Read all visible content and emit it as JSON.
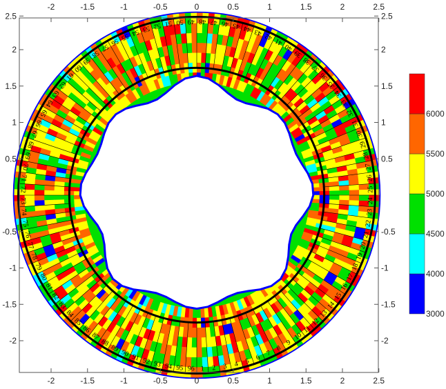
{
  "chart_data": {
    "type": "heatmap",
    "subtype": "filled-contour-polar-ring",
    "title": "",
    "xlabel": "",
    "ylabel": "",
    "xlim": [
      -2.5,
      2.5
    ],
    "ylim": [
      -2.5,
      2.5
    ],
    "x_ticks": [
      "-2",
      "-1.5",
      "-1",
      "-0.5",
      "0",
      "0.5",
      "1",
      "1.5",
      "2",
      "2.5"
    ],
    "y_ticks": [
      "2.5",
      "2",
      "1.5",
      "1",
      "0.5",
      "-0.5",
      "-1",
      "-1.5",
      "-2"
    ],
    "ring": {
      "inner_radius": 1.75,
      "outer_radius": 2.45,
      "sections": 96,
      "direction": "counterclockwise from bottom"
    },
    "section_labels": [
      "1",
      "2",
      "3",
      "4",
      "5",
      "6",
      "7",
      "8",
      "9",
      "10",
      "11",
      "12",
      "13",
      "14",
      "15",
      "16",
      "17",
      "18",
      "19",
      "20",
      "21",
      "22",
      "23",
      "24",
      "25",
      "26",
      "27",
      "28",
      "29",
      "30",
      "31",
      "32",
      "33",
      "34",
      "35",
      "36",
      "37",
      "38",
      "39",
      "40",
      "41",
      "42",
      "43",
      "44",
      "45",
      "46",
      "47",
      "48",
      "49",
      "50",
      "51",
      "52",
      "53",
      "54",
      "55",
      "56",
      "57",
      "58",
      "59",
      "60",
      "61",
      "62",
      "63",
      "64",
      "65",
      "66",
      "67",
      "68",
      "69",
      "70",
      "71",
      "72",
      "73",
      "74",
      "75",
      "76",
      "77",
      "78",
      "79",
      "80",
      "81",
      "82",
      "83",
      "84",
      "85",
      "86",
      "87",
      "88",
      "89",
      "90",
      "91",
      "92",
      "93",
      "94",
      "95",
      "96"
    ],
    "colorbar": {
      "levels": [
        "3000",
        "4000",
        "4500",
        "5000",
        "5500",
        "6000"
      ],
      "bands": [
        {
          "from": 3000,
          "to": 4000,
          "color": "#0000ff"
        },
        {
          "from": 4000,
          "to": 4500,
          "color": "#00ffff"
        },
        {
          "from": 4500,
          "to": 5000,
          "color": "#00e000"
        },
        {
          "from": 5000,
          "to": 5500,
          "color": "#ffff00"
        },
        {
          "from": 5500,
          "to": 6000,
          "color": "#ff6600"
        },
        {
          "from": 6000,
          "to": 6500,
          "color": "#ff0000"
        }
      ]
    },
    "grid": false,
    "legend": "right"
  }
}
